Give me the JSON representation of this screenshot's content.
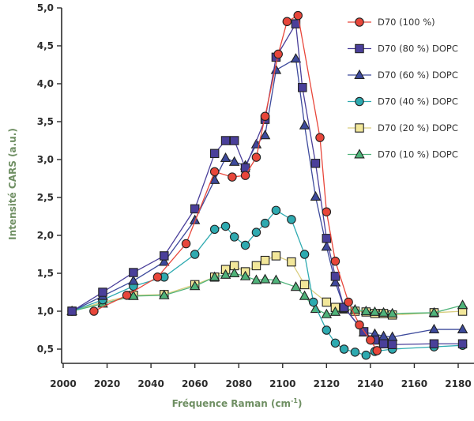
{
  "chart_data": {
    "type": "line",
    "xlabel": "Fréquence Raman (cm",
    "xlabel_sup": "-1",
    "xlabel_end": ")",
    "ylabel": "Intensité CARS (a.u.)",
    "xlim": [
      2000,
      2185
    ],
    "ylim": [
      0.3,
      5.0
    ],
    "x_ticks": [
      2000,
      2020,
      2040,
      2060,
      2080,
      2100,
      2120,
      2140,
      2160,
      2180
    ],
    "y_ticks": [
      0.5,
      1.0,
      1.5,
      2.0,
      2.5,
      3.0,
      3.5,
      4.0,
      4.5,
      5.0
    ],
    "y_tick_labels": [
      "0,5",
      "1,0",
      "1,5",
      "2,0",
      "2,5",
      "3,0",
      "3,5",
      "4,0",
      "4,5",
      "5,0"
    ],
    "grid": false,
    "legend_position": "top-right",
    "series": [
      {
        "name": "D70 (100 %)",
        "marker": "circle",
        "color": "#e8463a",
        "line_color": "#e8463a",
        "x": [
          2014,
          2029,
          2043,
          2056,
          2069,
          2077,
          2083,
          2088,
          2092,
          2098,
          2102,
          2107,
          2117,
          2120,
          2124,
          2130,
          2135,
          2140,
          2143
        ],
        "y": [
          1.0,
          1.21,
          1.45,
          1.89,
          2.84,
          2.77,
          2.79,
          3.03,
          3.57,
          4.39,
          4.82,
          4.9,
          3.29,
          2.31,
          1.66,
          1.12,
          0.82,
          0.62,
          0.48
        ]
      },
      {
        "name": "D70 (80 %) DOPC",
        "marker": "square",
        "color": "#4a3f9a",
        "line_color": "#4a3f9a",
        "x": [
          2004,
          2018,
          2032,
          2046,
          2060,
          2069,
          2074,
          2078,
          2083,
          2092,
          2097,
          2106,
          2109,
          2115,
          2120,
          2124,
          2128,
          2137,
          2142,
          2146,
          2150,
          2169,
          2182
        ],
        "y": [
          1.0,
          1.25,
          1.51,
          1.73,
          2.35,
          3.08,
          3.25,
          3.25,
          2.89,
          3.53,
          4.35,
          4.79,
          3.95,
          2.95,
          1.96,
          1.46,
          1.05,
          0.73,
          0.62,
          0.57,
          0.56,
          0.57,
          0.57
        ]
      },
      {
        "name": "D70 (60 %) DOPC",
        "marker": "triangle",
        "color": "#3d4a9c",
        "line_color": "#3d4a9c",
        "x": [
          2004,
          2018,
          2032,
          2046,
          2060,
          2069,
          2074,
          2078,
          2083,
          2088,
          2092,
          2097,
          2106,
          2110,
          2115,
          2120,
          2124,
          2128,
          2137,
          2142,
          2146,
          2150,
          2169,
          2182
        ],
        "y": [
          1.0,
          1.2,
          1.4,
          1.65,
          2.2,
          2.73,
          3.02,
          2.97,
          2.92,
          3.2,
          3.32,
          4.18,
          4.33,
          3.45,
          2.51,
          1.85,
          1.38,
          1.05,
          0.72,
          0.7,
          0.67,
          0.66,
          0.76,
          0.76
        ]
      },
      {
        "name": "D70 (40 %) DOPC",
        "marker": "circle",
        "color": "#2eaab0",
        "line_color": "#2eaab0",
        "x": [
          2004,
          2018,
          2032,
          2046,
          2060,
          2069,
          2074,
          2078,
          2083,
          2088,
          2092,
          2097,
          2104,
          2110,
          2114,
          2120,
          2124,
          2128,
          2133,
          2138,
          2142,
          2150,
          2169,
          2182
        ],
        "y": [
          1.0,
          1.15,
          1.33,
          1.45,
          1.75,
          2.08,
          2.12,
          1.98,
          1.87,
          2.04,
          2.16,
          2.33,
          2.21,
          1.75,
          1.12,
          0.75,
          0.58,
          0.5,
          0.46,
          0.42,
          0.47,
          0.5,
          0.53,
          0.55
        ]
      },
      {
        "name": "D70 (20 %) DOPC",
        "marker": "square",
        "color": "#f2e79a",
        "line_color": "#d9cd7e",
        "x": [
          2004,
          2018,
          2032,
          2046,
          2060,
          2069,
          2074,
          2078,
          2083,
          2088,
          2092,
          2097,
          2104,
          2110,
          2120,
          2124,
          2128,
          2133,
          2138,
          2142,
          2146,
          2150,
          2169,
          2182
        ],
        "y": [
          1.0,
          1.12,
          1.21,
          1.22,
          1.35,
          1.45,
          1.55,
          1.6,
          1.52,
          1.6,
          1.67,
          1.73,
          1.65,
          1.35,
          1.12,
          1.05,
          1.03,
          1.0,
          0.99,
          0.97,
          0.97,
          0.95,
          0.98,
          1.0
        ]
      },
      {
        "name": "D70 (10 %) DOPC",
        "marker": "triangle",
        "color": "#4fb37a",
        "line_color": "#4fb37a",
        "x": [
          2004,
          2018,
          2032,
          2046,
          2060,
          2069,
          2074,
          2078,
          2083,
          2088,
          2092,
          2097,
          2106,
          2110,
          2115,
          2120,
          2124,
          2128,
          2133,
          2138,
          2142,
          2146,
          2150,
          2169,
          2182
        ],
        "y": [
          1.0,
          1.1,
          1.2,
          1.21,
          1.33,
          1.45,
          1.48,
          1.5,
          1.46,
          1.41,
          1.42,
          1.41,
          1.32,
          1.2,
          1.03,
          0.96,
          0.99,
          1.03,
          1.02,
          1.0,
          0.99,
          0.98,
          0.97,
          0.98,
          1.08
        ]
      }
    ]
  },
  "colors": {
    "axis": "#2b2b2b",
    "axis_title": "#6f8f63",
    "marker_outline": "#222222"
  }
}
